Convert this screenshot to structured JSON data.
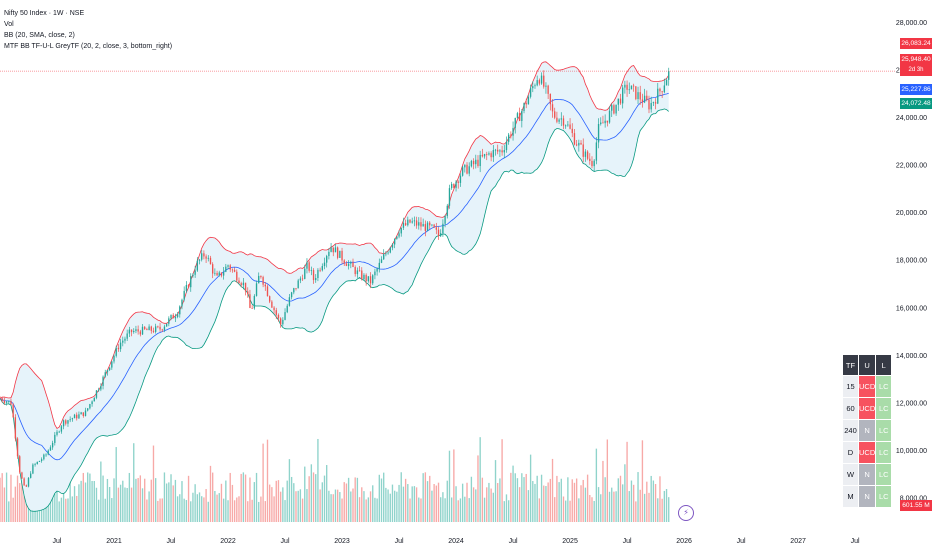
{
  "legend": {
    "symbol": "Nifty 50 Index · 1W · NSE",
    "vol": "Vol",
    "bb": "BB (20, SMA, close, 2)",
    "mtf": "MTF BB TF-U-L GreyTF (20, 2, close, 3, bottom_right)"
  },
  "price_tags": [
    {
      "label": "26,083.24",
      "color": "#f23645"
    },
    {
      "label": "25,948.40",
      "color": "#f23645"
    },
    {
      "label": "2d 3h",
      "color": "#f23645"
    },
    {
      "label": "25,227.86",
      "color": "#2962ff"
    },
    {
      "label": "24,072.48",
      "color": "#089981"
    },
    {
      "label": "601.55 M",
      "color": "#f23645"
    }
  ],
  "mtf_table": {
    "headers": [
      "TF",
      "U",
      "L"
    ],
    "rows": [
      {
        "tf": "15",
        "u": "UCD",
        "l": "LC",
        "u_state": "ucd"
      },
      {
        "tf": "60",
        "u": "UCD",
        "l": "LC",
        "u_state": "ucd"
      },
      {
        "tf": "240",
        "u": "N",
        "l": "LC",
        "u_state": "n"
      },
      {
        "tf": "D",
        "u": "UCD",
        "l": "LC",
        "u_state": "ucd"
      },
      {
        "tf": "W",
        "u": "N",
        "l": "LC",
        "u_state": "n"
      },
      {
        "tf": "M",
        "u": "N",
        "l": "LC",
        "u_state": "n"
      }
    ]
  },
  "icons": {
    "replay": "lightning-bolt-icon"
  },
  "chart_data": {
    "type": "candlestick",
    "y_axis": {
      "range": [
        7000,
        28600
      ],
      "ticks": [
        8000,
        10000,
        12000,
        14000,
        16000,
        18000,
        20000,
        22000,
        24000,
        26000,
        28000
      ],
      "tick_labels": [
        "8,000.00",
        "10,000.00",
        "12,000.00",
        "14,000.00",
        "16,000.00",
        "18,000.00",
        "20,000.00",
        "22,000.00",
        "24,000.00",
        "26,000.00",
        "28,000.00"
      ]
    },
    "x_axis": {
      "range": [
        2020.0,
        2027.85
      ],
      "ticks": [
        2020.5,
        2021.0,
        2021.5,
        2022.0,
        2022.5,
        2023.0,
        2023.5,
        2024.0,
        2024.5,
        2025.0,
        2025.5,
        2026.0,
        2026.5,
        2027.0,
        2027.5
      ],
      "tick_labels": [
        "Jul",
        "2021",
        "Jul",
        "2022",
        "Jul",
        "2023",
        "Jul",
        "2024",
        "Jul",
        "2025",
        "Jul",
        "2026",
        "Jul",
        "2027",
        "Jul"
      ]
    },
    "colors": {
      "up": "#26a69a",
      "down": "#ef5350",
      "bb_upper": "#f23645",
      "bb_basis": "#2962ff",
      "bb_lower": "#089981",
      "bb_fill": "#e6f3fa",
      "last_price_line": "#f23645"
    },
    "last_price": 25948.4,
    "anchors": [
      [
        2020.0,
        12200
      ],
      [
        2020.1,
        12000
      ],
      [
        2020.17,
        9200
      ],
      [
        2020.22,
        8300
      ],
      [
        2020.28,
        9300
      ],
      [
        2020.4,
        9800
      ],
      [
        2020.55,
        11200
      ],
      [
        2020.75,
        11600
      ],
      [
        2020.9,
        13000
      ],
      [
        2021.05,
        14500
      ],
      [
        2021.15,
        15000
      ],
      [
        2021.4,
        15100
      ],
      [
        2021.55,
        15800
      ],
      [
        2021.72,
        17800
      ],
      [
        2021.8,
        18300
      ],
      [
        2021.9,
        17200
      ],
      [
        2022.0,
        17800
      ],
      [
        2022.15,
        16900
      ],
      [
        2022.2,
        15800
      ],
      [
        2022.28,
        17500
      ],
      [
        2022.38,
        16200
      ],
      [
        2022.46,
        15300
      ],
      [
        2022.55,
        16500
      ],
      [
        2022.7,
        17800
      ],
      [
        2022.75,
        17200
      ],
      [
        2022.9,
        18600
      ],
      [
        2023.0,
        18100
      ],
      [
        2023.15,
        17400
      ],
      [
        2023.25,
        17100
      ],
      [
        2023.35,
        18000
      ],
      [
        2023.5,
        19300
      ],
      [
        2023.6,
        19600
      ],
      [
        2023.8,
        19300
      ],
      [
        2023.85,
        19000
      ],
      [
        2023.95,
        21000
      ],
      [
        2024.05,
        21700
      ],
      [
        2024.3,
        22500
      ],
      [
        2024.4,
        22600
      ],
      [
        2024.47,
        23300
      ],
      [
        2024.6,
        24500
      ],
      [
        2024.72,
        25800
      ],
      [
        2024.78,
        25200
      ],
      [
        2024.85,
        24100
      ],
      [
        2024.95,
        23900
      ],
      [
        2025.05,
        23000
      ],
      [
        2025.15,
        22300
      ],
      [
        2025.2,
        22100
      ],
      [
        2025.25,
        23500
      ],
      [
        2025.4,
        24500
      ],
      [
        2025.5,
        25300
      ],
      [
        2025.6,
        24900
      ],
      [
        2025.7,
        24500
      ],
      [
        2025.8,
        25200
      ],
      [
        2025.87,
        25950
      ]
    ]
  }
}
